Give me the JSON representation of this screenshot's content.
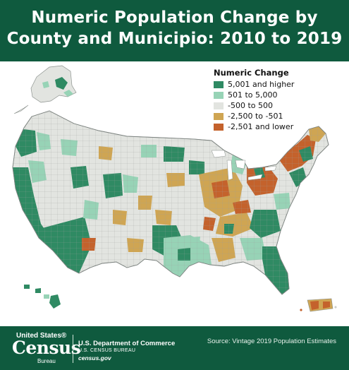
{
  "title_line1": "Numeric Population Change by",
  "title_line2": "County and Municipio: 2010 to 2019",
  "legend": {
    "title": "Numeric Change",
    "items": [
      {
        "label": "5,001 and higher",
        "color": "#2f8a63"
      },
      {
        "label": "501 to 5,000",
        "color": "#97d3b6"
      },
      {
        "label": "-500 to 500",
        "color": "#e2e4e0"
      },
      {
        "label": "-2,500 to -501",
        "color": "#cfa553"
      },
      {
        "label": "-2,501 and lower",
        "color": "#c4622c"
      }
    ]
  },
  "colors": {
    "header_bg": "#0f5a3e",
    "footer_bg": "#0f5a3e",
    "land_neutral": "#e2e4e0",
    "border": "#8d938f"
  },
  "footer": {
    "source": "Source: Vintage 2019 Population Estimates",
    "logo_top": "United States®",
    "logo_main": "Census",
    "logo_sub": "Bureau",
    "dept_name": "U.S. Department of Commerce",
    "dept_bureau": "U.S. CENSUS BUREAU",
    "dept_url": "census.gov"
  }
}
